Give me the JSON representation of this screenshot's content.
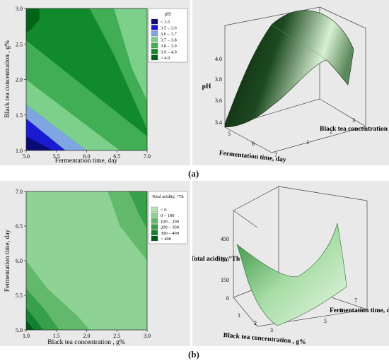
{
  "captions": [
    "(a)",
    "(b)"
  ],
  "chart_data": [
    {
      "type": "heatmap",
      "subtype": "contour",
      "xlabel": "Fermentation time, day",
      "ylabel": "Black tea concentration , g%",
      "xlim": [
        5.0,
        7.0
      ],
      "ylim": [
        1.0,
        3.0
      ],
      "x_ticks": [
        "5.0",
        "5.5",
        "6.0",
        "6.5",
        "7.0"
      ],
      "y_ticks": [
        "1.0",
        "1.5",
        "2.0",
        "2.5",
        "3.0"
      ],
      "legend_title": "pH",
      "legend_position": "top-right",
      "levels": [
        {
          "label": "< 3.5",
          "color": "#0a0a78"
        },
        {
          "label": "3.5 – 3.6",
          "color": "#1a1ad2"
        },
        {
          "label": "3.6 – 3.7",
          "color": "#7fa6e0"
        },
        {
          "label": "3.7 – 3.8",
          "color": "#7dcf8c"
        },
        {
          "label": "3.8 – 3.9",
          "color": "#41ad55"
        },
        {
          "label": "3.9 – 4.0",
          "color": "#118a2c"
        },
        {
          "label": "> 4.0",
          "color": "#006418"
        }
      ],
      "regions": [
        {
          "level": 0,
          "points": [
            [
              5.0,
              1.0
            ],
            [
              5.45,
              1.0
            ],
            [
              5.0,
              1.2
            ]
          ]
        },
        {
          "level": 1,
          "points": [
            [
              5.45,
              1.0
            ],
            [
              5.65,
              1.0
            ],
            [
              5.0,
              1.45
            ],
            [
              5.0,
              1.2
            ]
          ]
        },
        {
          "level": 2,
          "points": [
            [
              5.65,
              1.0
            ],
            [
              6.0,
              1.0
            ],
            [
              5.0,
              1.65
            ],
            [
              5.0,
              1.45
            ]
          ]
        },
        {
          "level": 3,
          "points": [
            [
              6.0,
              1.0
            ],
            [
              6.55,
              1.0
            ],
            [
              5.0,
              2.0
            ],
            [
              5.0,
              1.65
            ]
          ]
        },
        {
          "level": 4,
          "points": [
            [
              6.55,
              1.0
            ],
            [
              7.0,
              1.0
            ],
            [
              7.0,
              1.2
            ],
            [
              5.0,
              2.55
            ],
            [
              5.0,
              2.0
            ]
          ]
        },
        {
          "level": 3,
          "points": [
            [
              6.45,
              3.0
            ],
            [
              6.75,
              2.15
            ],
            [
              7.0,
              1.7
            ],
            [
              7.0,
              3.0
            ]
          ]
        },
        {
          "level": 4,
          "points": [
            [
              6.05,
              3.0
            ],
            [
              6.45,
              2.35
            ],
            [
              7.0,
              1.3
            ],
            [
              7.0,
              1.7
            ],
            [
              6.75,
              2.15
            ],
            [
              6.45,
              3.0
            ]
          ]
        },
        {
          "level": 6,
          "points": [
            [
              5.0,
              2.65
            ],
            [
              5.1,
              2.72
            ],
            [
              5.22,
              2.85
            ],
            [
              5.22,
              3.0
            ],
            [
              5.0,
              3.0
            ]
          ]
        }
      ]
    },
    {
      "type": "surface",
      "xlabel": "Fermentation time, day",
      "ylabel": "Black tea concentration , g%",
      "zlabel": "pH",
      "x_ticks": [
        "5",
        "6",
        "7"
      ],
      "y_ticks": [
        "1",
        "2",
        "3"
      ],
      "z_ticks": [
        "3.4",
        "3.6",
        "3.8",
        "4.0"
      ],
      "zlim": [
        3.4,
        4.1
      ]
    },
    {
      "type": "heatmap",
      "subtype": "contour",
      "xlabel": "Black tea concentration , g%",
      "ylabel": "Fermentation time, day",
      "xlim": [
        1.0,
        3.0
      ],
      "ylim": [
        5.0,
        7.0
      ],
      "x_ticks": [
        "1.0",
        "1.5",
        "2.0",
        "2.5",
        "3.0"
      ],
      "y_ticks": [
        "5.0",
        "5.5",
        "6.0",
        "6.5",
        "7.0"
      ],
      "legend_title": "Total acidity, °Th",
      "legend_position": "top-right",
      "levels": [
        {
          "label": "< 0",
          "color": "#b4e3b4"
        },
        {
          "label": "0 – 100",
          "color": "#8fd295"
        },
        {
          "label": "100 – 200",
          "color": "#62b96c"
        },
        {
          "label": "200 – 300",
          "color": "#37a04a"
        },
        {
          "label": "300 – 400",
          "color": "#118030"
        },
        {
          "label": "> 400",
          "color": "#00571a"
        }
      ],
      "regions": [
        {
          "level": 1,
          "points": [
            [
              1.0,
              5.0
            ],
            [
              3.0,
              5.0
            ],
            [
              3.0,
              7.0
            ],
            [
              1.0,
              7.0
            ]
          ]
        },
        {
          "level": 2,
          "points": [
            [
              2.35,
              7.0
            ],
            [
              2.55,
              6.5
            ],
            [
              3.0,
              6.0
            ],
            [
              3.0,
              7.0
            ]
          ]
        },
        {
          "level": 3,
          "points": [
            [
              2.7,
              7.0
            ],
            [
              2.85,
              6.7
            ],
            [
              3.0,
              6.45
            ],
            [
              3.0,
              7.0
            ]
          ]
        },
        {
          "level": 2,
          "points": [
            [
              1.0,
              6.0
            ],
            [
              1.35,
              5.6
            ],
            [
              1.85,
              5.2
            ],
            [
              2.05,
              5.0
            ],
            [
              1.0,
              5.0
            ]
          ]
        },
        {
          "level": 3,
          "points": [
            [
              1.0,
              5.6
            ],
            [
              1.3,
              5.3
            ],
            [
              1.55,
              5.0
            ],
            [
              1.0,
              5.0
            ]
          ]
        },
        {
          "level": 4,
          "points": [
            [
              1.0,
              5.32
            ],
            [
              1.18,
              5.12
            ],
            [
              1.28,
              5.0
            ],
            [
              1.0,
              5.0
            ]
          ]
        },
        {
          "level": 5,
          "points": [
            [
              1.0,
              5.14
            ],
            [
              1.08,
              5.05
            ],
            [
              1.13,
              5.0
            ],
            [
              1.0,
              5.0
            ]
          ]
        }
      ]
    },
    {
      "type": "surface",
      "xlabel": "Black tea concentration , g%",
      "ylabel": "Fermentation time, day",
      "zlabel": "Total acidity, °Th",
      "x_ticks": [
        "1",
        "2",
        "3"
      ],
      "y_ticks": [
        "5",
        "6",
        "7"
      ],
      "z_ticks": [
        "0",
        "150",
        "300",
        "450"
      ],
      "zlim": [
        0,
        450
      ]
    }
  ]
}
